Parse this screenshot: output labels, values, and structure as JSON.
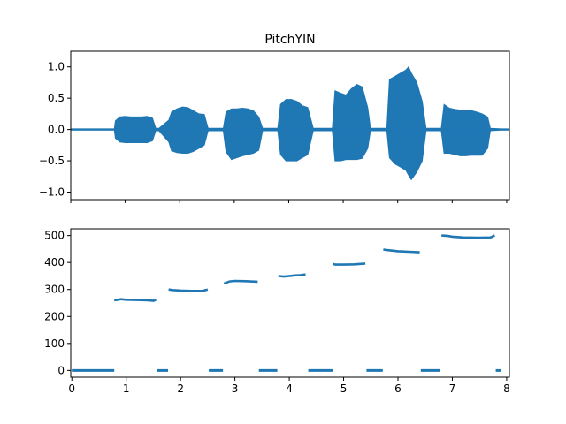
{
  "chart_data": [
    {
      "type": "area",
      "title": "PitchYIN",
      "xlabel": "",
      "ylabel": "",
      "xlim": [
        0,
        8.05
      ],
      "ylim": [
        -1.12,
        1.25
      ],
      "x_ticks": [
        0,
        1,
        2,
        3,
        4,
        5,
        6,
        7,
        8
      ],
      "y_ticks": [
        -1.0,
        -0.5,
        0.0,
        0.5,
        1.0
      ],
      "y_tick_labels": [
        "−1.0",
        "−0.5",
        "0.0",
        "0.5",
        "1.0"
      ],
      "grid": false,
      "series": [
        {
          "color": "#1f77b4",
          "x": [
            0,
            0.8,
            0.82,
            0.9,
            1.0,
            1.1,
            1.2,
            1.3,
            1.4,
            1.5,
            1.56,
            1.62,
            1.8,
            1.85,
            1.95,
            2.05,
            2.15,
            2.25,
            2.35,
            2.45,
            2.52,
            2.8,
            2.85,
            2.95,
            3.05,
            3.15,
            3.25,
            3.35,
            3.45,
            3.52,
            3.8,
            3.85,
            3.95,
            4.05,
            4.15,
            4.25,
            4.35,
            4.45,
            4.8,
            4.85,
            4.95,
            5.05,
            5.15,
            5.25,
            5.35,
            5.45,
            5.5,
            5.8,
            5.85,
            5.95,
            6.05,
            6.15,
            6.2,
            6.25,
            6.35,
            6.45,
            6.52,
            6.8,
            6.85,
            6.95,
            7.05,
            7.15,
            7.25,
            7.35,
            7.45,
            7.55,
            7.65,
            7.7,
            7.9,
            8.05
          ],
          "upper": [
            0.01,
            0.01,
            0.14,
            0.2,
            0.21,
            0.2,
            0.2,
            0.2,
            0.21,
            0.18,
            0.02,
            0.02,
            0.15,
            0.28,
            0.33,
            0.36,
            0.35,
            0.3,
            0.25,
            0.24,
            0.02,
            0.02,
            0.28,
            0.33,
            0.33,
            0.34,
            0.33,
            0.3,
            0.2,
            0.02,
            0.02,
            0.4,
            0.48,
            0.48,
            0.45,
            0.38,
            0.35,
            0.02,
            0.02,
            0.62,
            0.58,
            0.55,
            0.65,
            0.72,
            0.68,
            0.35,
            0.02,
            0.02,
            0.8,
            0.85,
            0.9,
            0.95,
            1.0,
            0.9,
            0.75,
            0.45,
            0.02,
            0.02,
            0.4,
            0.34,
            0.32,
            0.31,
            0.3,
            0.3,
            0.28,
            0.25,
            0.2,
            0.02,
            0.01,
            0.01
          ],
          "lower": [
            -0.01,
            -0.01,
            -0.14,
            -0.2,
            -0.21,
            -0.21,
            -0.21,
            -0.21,
            -0.21,
            -0.18,
            -0.02,
            -0.02,
            -0.2,
            -0.34,
            -0.37,
            -0.38,
            -0.38,
            -0.35,
            -0.3,
            -0.25,
            -0.02,
            -0.02,
            -0.36,
            -0.48,
            -0.45,
            -0.42,
            -0.4,
            -0.38,
            -0.33,
            -0.02,
            -0.02,
            -0.4,
            -0.5,
            -0.5,
            -0.5,
            -0.45,
            -0.4,
            -0.02,
            -0.02,
            -0.5,
            -0.5,
            -0.48,
            -0.48,
            -0.48,
            -0.46,
            -0.3,
            -0.02,
            -0.02,
            -0.45,
            -0.55,
            -0.6,
            -0.65,
            -0.73,
            -0.8,
            -0.68,
            -0.5,
            -0.02,
            -0.02,
            -0.38,
            -0.38,
            -0.4,
            -0.42,
            -0.42,
            -0.41,
            -0.41,
            -0.41,
            -0.3,
            -0.02,
            -0.01,
            -0.01
          ]
        }
      ]
    },
    {
      "type": "scatter",
      "title": "",
      "xlabel": "",
      "ylabel": "",
      "xlim": [
        -0.02,
        8.05
      ],
      "ylim": [
        -25,
        525
      ],
      "x_ticks": [
        0,
        1,
        2,
        3,
        4,
        5,
        6,
        7,
        8
      ],
      "y_ticks": [
        0,
        100,
        200,
        300,
        400,
        500
      ],
      "grid": false,
      "series": [
        {
          "color": "#1f77b4",
          "segments": [
            {
              "x": [
                0.0,
                0.78
              ],
              "y": [
                0,
                0
              ]
            },
            {
              "x": [
                0.78,
                0.85,
                0.9,
                1.0,
                1.2,
                1.4,
                1.5,
                1.55
              ],
              "y": [
                260,
                262,
                264,
                262,
                261,
                260,
                258,
                262
              ]
            },
            {
              "x": [
                1.57,
                1.77
              ],
              "y": [
                0,
                0
              ]
            },
            {
              "x": [
                1.78,
                1.85,
                2.0,
                2.2,
                2.4,
                2.5
              ],
              "y": [
                300,
                298,
                296,
                295,
                295,
                300
              ]
            },
            {
              "x": [
                2.52,
                2.78
              ],
              "y": [
                0,
                0
              ]
            },
            {
              "x": [
                2.8,
                2.9,
                3.0,
                3.2,
                3.42
              ],
              "y": [
                322,
                330,
                332,
                331,
                329
              ]
            },
            {
              "x": [
                3.44,
                3.78
              ],
              "y": [
                0,
                0
              ]
            },
            {
              "x": [
                3.8,
                3.9,
                4.0,
                4.1,
                4.2,
                4.3
              ],
              "y": [
                350,
                348,
                350,
                352,
                353,
                356
              ]
            },
            {
              "x": [
                4.35,
                4.8
              ],
              "y": [
                0,
                0
              ]
            },
            {
              "x": [
                4.8,
                4.85,
                5.0,
                5.2,
                5.4
              ],
              "y": [
                395,
                392,
                392,
                393,
                396
              ]
            },
            {
              "x": [
                5.42,
                5.72
              ],
              "y": [
                0,
                0
              ]
            },
            {
              "x": [
                5.73,
                5.8,
                6.0,
                6.2,
                6.4
              ],
              "y": [
                448,
                446,
                442,
                440,
                438
              ]
            },
            {
              "x": [
                6.42,
                6.78
              ],
              "y": [
                0,
                0
              ]
            },
            {
              "x": [
                6.8,
                6.9,
                7.0,
                7.2,
                7.5,
                7.7,
                7.78
              ],
              "y": [
                500,
                499,
                496,
                493,
                492,
                493,
                500
              ]
            },
            {
              "x": [
                7.8,
                7.9
              ],
              "y": [
                0,
                0
              ]
            }
          ]
        }
      ]
    }
  ]
}
